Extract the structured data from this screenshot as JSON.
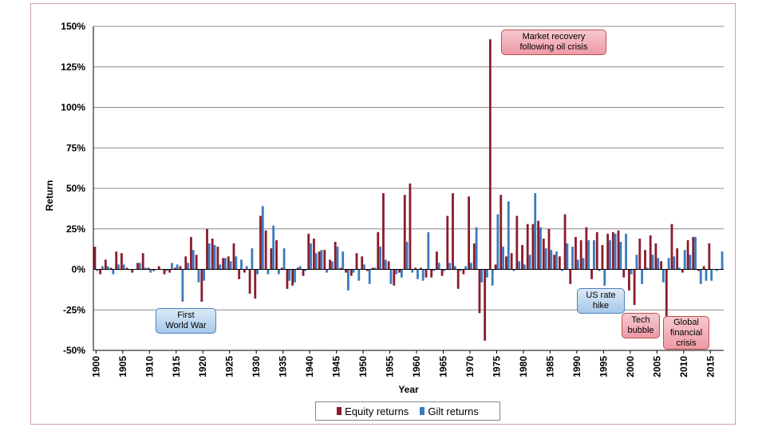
{
  "chart_data": {
    "type": "bar",
    "xlabel": "Year",
    "ylabel": "Return",
    "ylim": [
      -50,
      150
    ],
    "yticks": [
      "150%",
      "125%",
      "100%",
      "75%",
      "50%",
      "25%",
      "0%",
      "-25%",
      "-50%"
    ],
    "ytick_values": [
      150,
      125,
      100,
      75,
      50,
      25,
      0,
      -25,
      -50
    ],
    "xticks": [
      "1900",
      "1905",
      "1910",
      "1915",
      "1920",
      "1925",
      "1930",
      "1935",
      "1940",
      "1945",
      "1950",
      "1955",
      "1960",
      "1965",
      "1970",
      "1975",
      "1980",
      "1985",
      "1990",
      "1995",
      "2000",
      "2005",
      "2010",
      "2015"
    ],
    "xtick_values": [
      1900,
      1905,
      1910,
      1915,
      1920,
      1925,
      1930,
      1935,
      1940,
      1945,
      1950,
      1955,
      1960,
      1965,
      1970,
      1975,
      1980,
      1985,
      1990,
      1995,
      2000,
      2005,
      2010,
      2015
    ],
    "grid": true,
    "legend_position": "bottom",
    "x_start": 1900,
    "x_end": 2017,
    "series": [
      {
        "name": "Equity returns",
        "color": "#8b1c2c",
        "values": [
          14,
          -3,
          6,
          1,
          11,
          10,
          1,
          -2,
          4,
          10,
          1,
          -1,
          2,
          -3,
          -2,
          1,
          2,
          8,
          20,
          9,
          -20,
          25,
          19,
          14,
          7,
          8,
          16,
          -6,
          -2,
          -15,
          -18,
          33,
          24,
          13,
          18,
          1,
          -12,
          -10,
          1,
          -4,
          22,
          19,
          11,
          12,
          6,
          17,
          1,
          -2,
          -4,
          10,
          8,
          -1,
          1,
          23,
          47,
          5,
          -10,
          -2,
          46,
          53,
          1,
          1,
          -5,
          -5,
          11,
          -4,
          33,
          47,
          -12,
          -3,
          45,
          16,
          -27,
          -44,
          142,
          3,
          46,
          8,
          10,
          33,
          15,
          28,
          28,
          30,
          19,
          25,
          9,
          8,
          34,
          -9,
          20,
          18,
          26,
          -6,
          23,
          15,
          22,
          23,
          24,
          -5,
          -13,
          -22,
          19,
          12,
          21,
          16,
          5,
          -29,
          28,
          13,
          -2,
          18,
          20,
          -1,
          2,
          16
        ]
      },
      {
        "name": "Gilt returns",
        "color": "#3b7bbf",
        "values": [
          -1,
          2,
          2,
          -3,
          3,
          3,
          0,
          0,
          4,
          1,
          -2,
          0,
          0,
          -1,
          4,
          3,
          -20,
          4,
          12,
          -8,
          -7,
          16,
          15,
          3,
          7,
          5,
          8,
          6,
          2,
          13,
          -3,
          39,
          -3,
          27,
          -3,
          13,
          -7,
          -8,
          2,
          -1,
          16,
          10,
          12,
          -2,
          5,
          14,
          11,
          -13,
          -2,
          -7,
          3,
          -9,
          1,
          14,
          6,
          -9,
          -3,
          -5,
          17,
          -2,
          -6,
          -7,
          23,
          -1,
          4,
          -1,
          4,
          2,
          -1,
          2,
          4,
          26,
          -8,
          -5,
          -10,
          34,
          14,
          42,
          -1,
          5,
          3,
          9,
          47,
          26,
          13,
          12,
          11,
          -1,
          16,
          14,
          6,
          7,
          18,
          18,
          -1,
          -10,
          18,
          22,
          17,
          22,
          -3,
          9,
          -9,
          1,
          9,
          7,
          -8,
          7,
          8,
          1,
          12,
          9,
          20,
          -9,
          -7,
          -7,
          -1,
          11
        ]
      }
    ],
    "annotations": [
      {
        "text": "Market recovery\nfollowing oil crisis",
        "style": "red"
      },
      {
        "text": "First\nWorld War",
        "style": "blue"
      },
      {
        "text": "US rate\nhike",
        "style": "blue"
      },
      {
        "text": "Tech\nbubble",
        "style": "red"
      },
      {
        "text": "Global\nfinancial\ncrisis",
        "style": "red"
      }
    ]
  }
}
